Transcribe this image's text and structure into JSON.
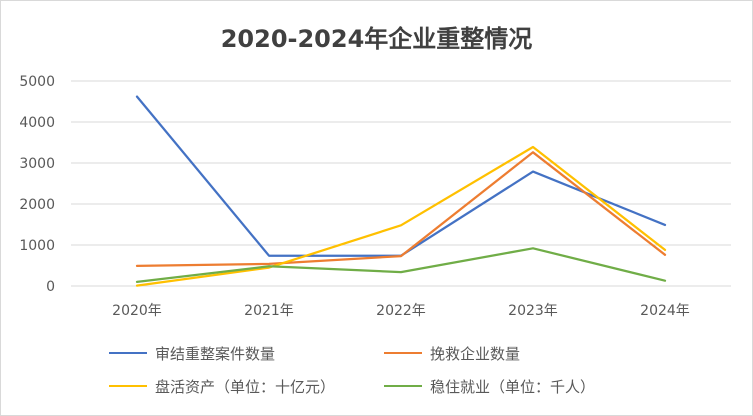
{
  "chart_data": {
    "type": "line",
    "title": "2020-2024年企业重整情况",
    "categories": [
      "2020年",
      "2021年",
      "2022年",
      "2023年",
      "2024年"
    ],
    "ylim": [
      0,
      5000
    ],
    "yticks": [
      "0",
      "1000",
      "2000",
      "3000",
      "4000",
      "5000"
    ],
    "grid": true,
    "legend_position": "bottom",
    "series": [
      {
        "name": "审结重整案件数量",
        "color": "#4472C4",
        "values": [
          4620,
          740,
          740,
          2790,
          1490
        ]
      },
      {
        "name": "挽救企业数量",
        "color": "#ED7D31",
        "values": [
          490,
          540,
          730,
          3260,
          760
        ]
      },
      {
        "name": "盘活资产（单位：十亿元）",
        "color": "#FFC000",
        "values": [
          10,
          450,
          1480,
          3390,
          880
        ]
      },
      {
        "name": "稳住就业（单位：千人）",
        "color": "#70AD47",
        "values": [
          100,
          480,
          340,
          920,
          130
        ]
      }
    ]
  }
}
